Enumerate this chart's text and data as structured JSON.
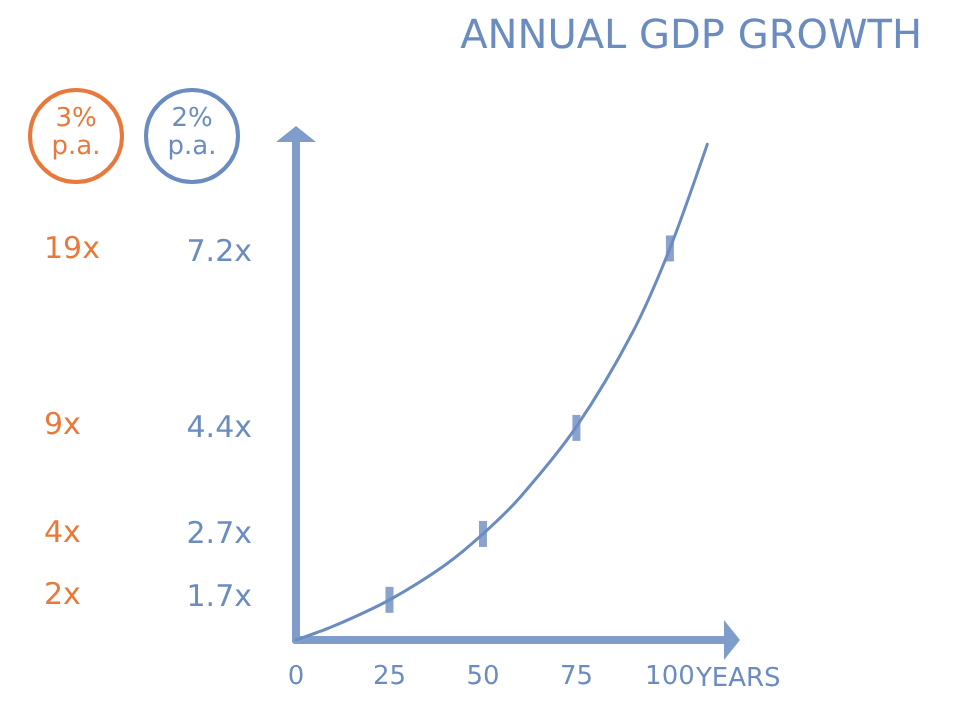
{
  "chart_data": {
    "type": "line",
    "title": "ANNUAL GDP GROWTH",
    "xlabel": "YEARS",
    "xlim": [
      0,
      115
    ],
    "xticks": [
      0,
      25,
      50,
      75,
      100
    ],
    "ylim": [
      1,
      9
    ],
    "yticks": [
      {
        "value": 1.7,
        "label": "1.7x"
      },
      {
        "value": 2.7,
        "label": "2.7x"
      },
      {
        "value": 4.4,
        "label": "4.4x"
      },
      {
        "value": 7.2,
        "label": "7.2x"
      }
    ],
    "series": [
      {
        "name": "2% p.a.",
        "color": "#6b8cc0",
        "x": [
          0,
          10,
          25,
          40,
          50,
          60,
          75,
          90,
          100,
          110
        ],
        "values": [
          1,
          1.22,
          1.64,
          2.2,
          2.69,
          3.28,
          4.4,
          5.9,
          7.24,
          8.9
        ],
        "marker": "none"
      },
      {
        "type": "scatter",
        "color": "#6b8cc0",
        "x": [
          25,
          50,
          75,
          100
        ],
        "values": [
          1.64,
          2.69,
          4.38,
          7.24
        ],
        "marker": "square"
      }
    ],
    "annotations": [
      "3% p.a.",
      "2x",
      "4x",
      "9x",
      "19x"
    ],
    "legend": "top left",
    "grid": false
  }
}
